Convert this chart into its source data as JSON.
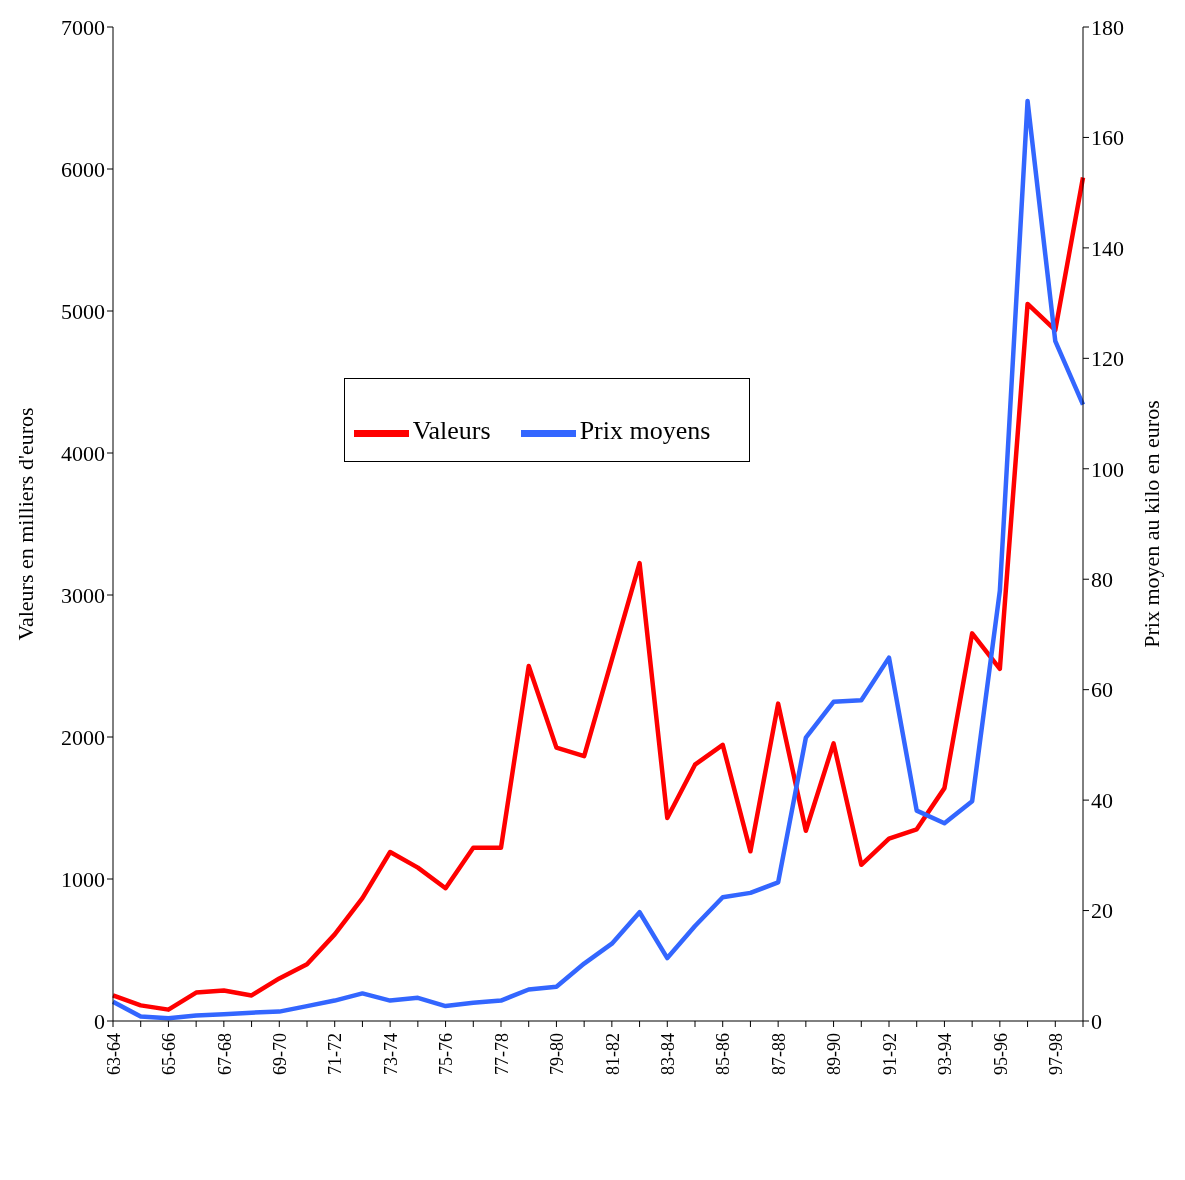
{
  "chart_data": {
    "type": "line",
    "categories": [
      "63-64",
      null,
      "65-66",
      null,
      "67-68",
      null,
      "69-70",
      null,
      "71-72",
      null,
      "73-74",
      null,
      "75-76",
      null,
      "77-78",
      null,
      "79-80",
      null,
      "81-82",
      null,
      "83-84",
      null,
      "85-86",
      null,
      "87-88",
      null,
      "89-90",
      null,
      "91-92",
      null,
      "93-94",
      null,
      "95-96",
      null,
      "97-98",
      null
    ],
    "series": [
      {
        "name": "Valeurs",
        "color": "#ff0000",
        "values": [
          180,
          110,
          80,
          200,
          215,
          180,
          300,
          400,
          610,
          865,
          1190,
          1080,
          935,
          1220,
          1220,
          2500,
          1925,
          1865,
          2545,
          3225,
          1430,
          1805,
          1945,
          1195,
          2235,
          1340,
          1955,
          1100,
          1285,
          1350,
          1640,
          2730,
          2480,
          5050,
          4865,
          5940
        ]
      },
      {
        "name": "Prix moyens",
        "color": "#3366ff",
        "axis": "y2",
        "values": [
          3.5,
          0.8,
          0.5,
          1.0,
          1.2,
          1.5,
          1.7,
          2.7,
          3.7,
          5.0,
          3.7,
          4.2,
          2.7,
          3.3,
          3.7,
          5.7,
          6.2,
          10.4,
          14.0,
          19.7,
          11.4,
          17.2,
          22.4,
          23.2,
          25.1,
          51.3,
          57.8,
          58.1,
          65.8,
          38.1,
          35.8,
          39.8,
          77.9,
          166.6,
          123.1,
          111.6
        ]
      }
    ],
    "ylabel": "Valeurs en milliers d'euros",
    "y2label": "Prix moyen au kilo en euros",
    "ylim": [
      0,
      7000
    ],
    "yticks": [
      0,
      1000,
      2000,
      3000,
      4000,
      5000,
      6000,
      7000
    ],
    "y2lim": [
      0,
      180
    ],
    "y2ticks": [
      0,
      20,
      40,
      60,
      80,
      100,
      120,
      140,
      160,
      180
    ],
    "grid": false,
    "legend": "center",
    "marker": "none",
    "line_style": "solid"
  }
}
